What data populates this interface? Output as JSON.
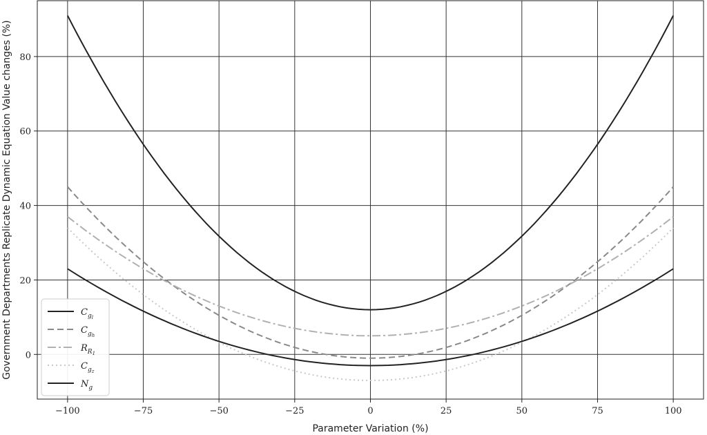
{
  "chart_data": {
    "type": "line",
    "xlabel": "Parameter Variation (%)",
    "ylabel": "Government Departments Replicate Dynamic Equation Value changes (%)",
    "xlim": [
      -110,
      110
    ],
    "ylim": [
      -12,
      95
    ],
    "xticks": [
      -100,
      -75,
      -50,
      -25,
      0,
      25,
      50,
      75,
      100
    ],
    "xtick_labels": [
      "−100",
      "−75",
      "−50",
      "−25",
      "0",
      "25",
      "50",
      "75",
      "100"
    ],
    "yticks": [
      0,
      20,
      40,
      60,
      80
    ],
    "ytick_labels": [
      "0",
      "20",
      "40",
      "60",
      "80"
    ],
    "grid": true,
    "legend_position": "lower-left",
    "x": [
      -100,
      -75,
      -50,
      -25,
      0,
      25,
      50,
      75,
      100
    ],
    "series": [
      {
        "name": "C_{g_l}",
        "label_main": "C",
        "label_sub": "g",
        "label_subsub": "l",
        "color": "#222222",
        "style": "solid",
        "values": [
          91,
          56.25,
          31,
          15.75,
          12,
          17,
          31,
          56.25,
          91
        ]
      },
      {
        "name": "C_{g_h}",
        "label_main": "C",
        "label_sub": "g",
        "label_subsub": "h",
        "color": "#888888",
        "style": "dashed",
        "values": [
          45,
          24.8,
          10.5,
          2,
          -1,
          2,
          10.5,
          24.8,
          45
        ]
      },
      {
        "name": "R_{R_1}",
        "label_main": "R",
        "label_sub": "R",
        "label_subsub": "1",
        "color": "#b0b0b0",
        "style": "dashdot",
        "values": [
          37,
          23,
          13,
          7,
          5,
          7,
          13,
          23,
          37
        ]
      },
      {
        "name": "C_{g_z}",
        "label_main": "C",
        "label_sub": "g",
        "label_subsub": "z",
        "color": "#c8c8c8",
        "style": "dotted",
        "values": [
          34,
          16,
          3.5,
          -4.5,
          -7,
          -4.5,
          3.5,
          16,
          34
        ]
      },
      {
        "name": "N_g",
        "label_main": "N",
        "label_sub": "g",
        "label_subsub": "",
        "color": "#222222",
        "style": "solid",
        "values": [
          23,
          11.5,
          3.5,
          -1.5,
          -3,
          -1.5,
          3.5,
          11.5,
          23
        ]
      }
    ]
  }
}
